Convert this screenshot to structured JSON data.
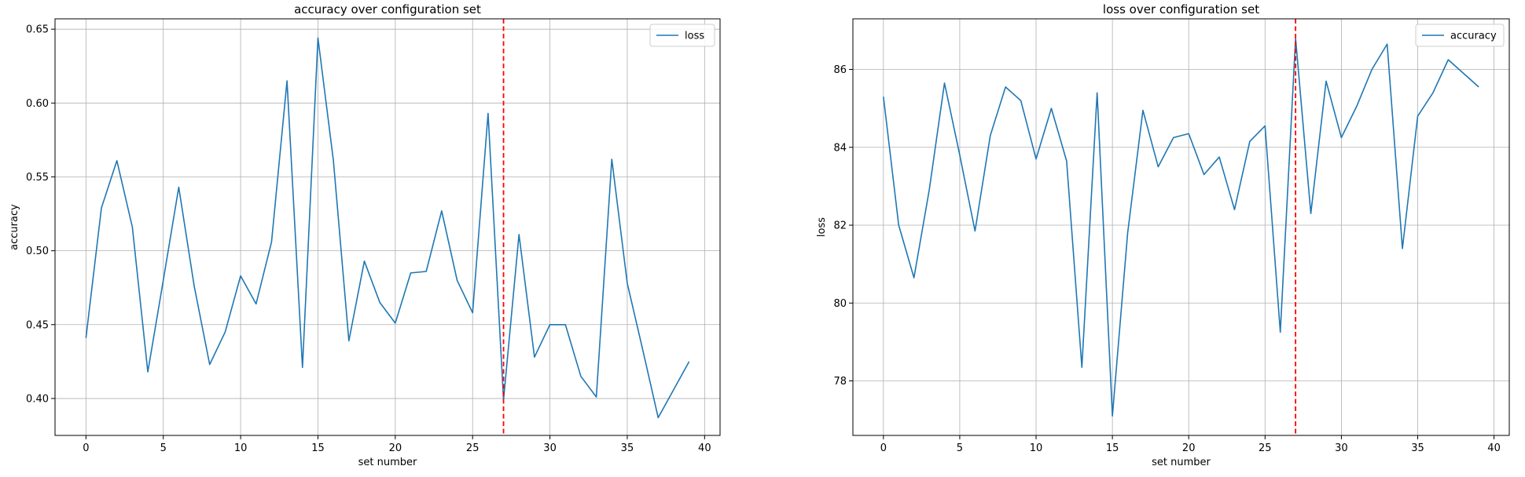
{
  "chart_data": [
    {
      "type": "line",
      "title": "accuracy over configuration set",
      "xlabel": "set number",
      "ylabel": "accuracy",
      "xlim": [
        -2,
        41
      ],
      "ylim": [
        0.375,
        0.657
      ],
      "xticks": [
        0,
        5,
        10,
        15,
        20,
        25,
        30,
        35,
        40
      ],
      "yticks": [
        0.4,
        0.45,
        0.5,
        0.55,
        0.6,
        0.65
      ],
      "ytick_labels": [
        "0.40",
        "0.45",
        "0.50",
        "0.55",
        "0.60",
        "0.65"
      ],
      "grid": true,
      "legend_position": "top-right",
      "vline": {
        "x": 27,
        "color": "#ff0000",
        "style": "dashed"
      },
      "series": [
        {
          "name": "loss",
          "color": "#1f77b4",
          "x": [
            0,
            1,
            2,
            3,
            4,
            5,
            6,
            7,
            8,
            9,
            10,
            11,
            12,
            13,
            14,
            15,
            16,
            17,
            18,
            19,
            20,
            21,
            22,
            23,
            24,
            25,
            26,
            27,
            28,
            29,
            30,
            31,
            32,
            33,
            34,
            35,
            36,
            37,
            38,
            39
          ],
          "values": [
            0.441,
            0.529,
            0.561,
            0.516,
            0.418,
            0.48,
            0.543,
            0.476,
            0.423,
            0.445,
            0.483,
            0.464,
            0.506,
            0.615,
            0.421,
            0.644,
            0.561,
            0.439,
            0.493,
            0.465,
            0.451,
            0.485,
            0.486,
            0.527,
            0.48,
            0.458,
            0.593,
            0.399,
            0.511,
            0.428,
            0.45,
            0.45,
            0.415,
            0.401,
            0.562,
            0.478,
            0.433,
            0.387,
            0.406,
            0.425
          ]
        }
      ]
    },
    {
      "type": "line",
      "title": "loss over configuration set",
      "xlabel": "set number",
      "ylabel": "loss",
      "xlim": [
        -2,
        41
      ],
      "ylim": [
        76.6,
        87.3
      ],
      "xticks": [
        0,
        5,
        10,
        15,
        20,
        25,
        30,
        35,
        40
      ],
      "yticks": [
        78,
        80,
        82,
        84,
        86
      ],
      "ytick_labels": [
        "78",
        "80",
        "82",
        "84",
        "86"
      ],
      "grid": true,
      "legend_position": "top-right",
      "vline": {
        "x": 27,
        "color": "#ff0000",
        "style": "dashed"
      },
      "series": [
        {
          "name": "accuracy",
          "color": "#1f77b4",
          "x": [
            0,
            1,
            2,
            3,
            4,
            5,
            6,
            7,
            8,
            9,
            10,
            11,
            12,
            13,
            14,
            15,
            16,
            17,
            18,
            19,
            20,
            21,
            22,
            23,
            24,
            25,
            26,
            27,
            28,
            29,
            30,
            31,
            32,
            33,
            34,
            35,
            36,
            37,
            38,
            39
          ],
          "values": [
            85.3,
            82.0,
            80.65,
            82.9,
            85.65,
            83.8,
            81.85,
            84.3,
            85.55,
            85.2,
            83.7,
            85.0,
            83.65,
            78.35,
            85.4,
            77.1,
            81.8,
            84.95,
            83.5,
            84.25,
            84.35,
            83.3,
            83.75,
            82.4,
            84.15,
            84.55,
            79.25,
            86.8,
            82.3,
            85.7,
            84.25,
            85.05,
            86.0,
            86.65,
            81.4,
            84.8,
            85.4,
            86.25,
            85.9,
            85.55
          ]
        }
      ]
    }
  ]
}
